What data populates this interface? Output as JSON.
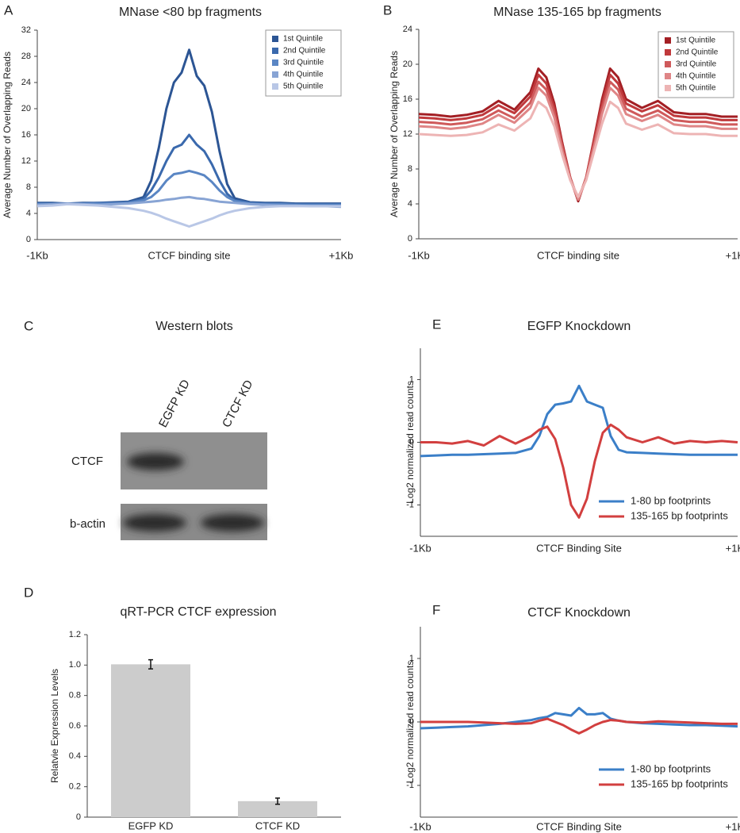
{
  "chart_data": [
    {
      "type": "line",
      "panel": "A",
      "title": "MNase <80 bp fragments",
      "ylabel": "Average Number of Overlapping Reads",
      "x": [
        -1000,
        -900,
        -800,
        -700,
        -600,
        -500,
        -400,
        -300,
        -250,
        -200,
        -150,
        -100,
        -50,
        0,
        50,
        100,
        150,
        200,
        250,
        300,
        400,
        500,
        600,
        700,
        800,
        900,
        1000
      ],
      "xlim": [
        -1000,
        1000
      ],
      "xticks": [
        {
          "value": -1000,
          "label": "-1Kb"
        },
        {
          "value": 0,
          "label": "CTCF binding site"
        },
        {
          "value": 1000,
          "label": "+1Kb"
        }
      ],
      "ylim": [
        0,
        32
      ],
      "yticks": [
        0,
        4,
        8,
        12,
        16,
        20,
        24,
        28,
        32
      ],
      "legend": "upper right",
      "series": [
        {
          "name": "1st Quintile",
          "color": "#2c5594",
          "values": [
            5.6,
            5.6,
            5.5,
            5.6,
            5.6,
            5.7,
            5.8,
            6.5,
            9,
            14,
            20,
            24,
            25.5,
            29,
            25,
            23.5,
            19.5,
            13.5,
            8.5,
            6.3,
            5.7,
            5.6,
            5.6,
            5.5,
            5.5,
            5.5,
            5.5
          ]
        },
        {
          "name": "2nd Quintile",
          "color": "#3a69ad",
          "values": [
            5.5,
            5.5,
            5.5,
            5.5,
            5.6,
            5.6,
            5.7,
            6.2,
            7.5,
            9.5,
            12,
            14,
            14.5,
            16,
            14.5,
            13.5,
            11.5,
            9,
            7,
            6,
            5.6,
            5.5,
            5.5,
            5.4,
            5.4,
            5.4,
            5.4
          ]
        },
        {
          "name": "3rd Quintile",
          "color": "#5a86c4",
          "values": [
            5.4,
            5.4,
            5.4,
            5.5,
            5.5,
            5.5,
            5.6,
            6,
            6.5,
            7.5,
            9,
            10,
            10.2,
            10.5,
            10.2,
            9.8,
            8.8,
            7.5,
            6.5,
            5.9,
            5.5,
            5.4,
            5.4,
            5.3,
            5.3,
            5.3,
            5.3
          ]
        },
        {
          "name": "4th Quintile",
          "color": "#88a4d4",
          "values": [
            5.3,
            5.4,
            5.5,
            5.4,
            5.3,
            5.4,
            5.5,
            5.7,
            5.8,
            5.9,
            6.1,
            6.2,
            6.4,
            6.5,
            6.3,
            6.2,
            6,
            5.8,
            5.7,
            5.6,
            5.4,
            5.3,
            5.2,
            5.2,
            5.1,
            5.1,
            5
          ]
        },
        {
          "name": "5th Quintile",
          "color": "#b9c7e6",
          "values": [
            5.1,
            5.2,
            5.4,
            5.3,
            5.2,
            5,
            4.8,
            4.4,
            4.1,
            3.7,
            3.2,
            2.8,
            2.4,
            2,
            2.4,
            2.8,
            3.2,
            3.7,
            4.1,
            4.4,
            4.8,
            5,
            5.1,
            5.1,
            5.1,
            5.1,
            5.1
          ]
        }
      ]
    },
    {
      "type": "line",
      "panel": "B",
      "title": "MNase 135-165 bp fragments",
      "ylabel": "Average Number of Overlapping Reads",
      "x": [
        -1000,
        -900,
        -800,
        -700,
        -600,
        -500,
        -400,
        -300,
        -250,
        -200,
        -150,
        -100,
        -50,
        0,
        50,
        100,
        150,
        200,
        250,
        300,
        400,
        500,
        600,
        700,
        800,
        900,
        1000
      ],
      "xlim": [
        -1000,
        1000
      ],
      "xticks": [
        {
          "value": -1000,
          "label": "-1Kb"
        },
        {
          "value": 0,
          "label": "CTCF binding site"
        },
        {
          "value": 1000,
          "label": "+1Kb"
        }
      ],
      "ylim": [
        0,
        24
      ],
      "yticks": [
        0,
        4,
        8,
        12,
        16,
        20,
        24
      ],
      "legend": "upper right",
      "series": [
        {
          "name": "1st Quintile",
          "color": "#a31f24",
          "values": [
            14.3,
            14.2,
            14,
            14.2,
            14.6,
            15.8,
            14.8,
            16.8,
            19.5,
            18.5,
            15.5,
            11,
            7,
            4.3,
            7,
            11.5,
            16,
            19.5,
            18.5,
            16,
            15,
            15.8,
            14.5,
            14.3,
            14.3,
            14,
            14
          ]
        },
        {
          "name": "2nd Quintile",
          "color": "#c0393c",
          "values": [
            13.9,
            13.8,
            13.6,
            13.8,
            14.2,
            15.3,
            14.4,
            16.3,
            18.8,
            17.8,
            15,
            10.8,
            7,
            4.5,
            7,
            11.3,
            15.5,
            18.8,
            17.8,
            15.5,
            14.6,
            15.3,
            14.1,
            13.9,
            13.9,
            13.6,
            13.6
          ]
        },
        {
          "name": "3rd Quintile",
          "color": "#cf5a5b",
          "values": [
            13.4,
            13.3,
            13.1,
            13.3,
            13.7,
            14.7,
            13.8,
            15.6,
            18,
            17.1,
            14.5,
            10.5,
            6.9,
            4.5,
            6.9,
            10.9,
            14.9,
            18,
            17.1,
            14.9,
            14,
            14.7,
            13.6,
            13.4,
            13.4,
            13.1,
            13.1
          ]
        },
        {
          "name": "4th Quintile",
          "color": "#df8586",
          "values": [
            12.9,
            12.8,
            12.6,
            12.8,
            13.2,
            14.2,
            13.3,
            15,
            17.3,
            16.4,
            13.9,
            10.1,
            6.8,
            4.5,
            6.8,
            10.5,
            14.3,
            17.3,
            16.4,
            14.3,
            13.5,
            14.2,
            13.1,
            12.9,
            12.9,
            12.6,
            12.6
          ]
        },
        {
          "name": "5th Quintile",
          "color": "#edb4b4",
          "values": [
            12,
            11.9,
            11.8,
            11.9,
            12.2,
            13.1,
            12.4,
            13.8,
            15.7,
            15,
            12.9,
            9.6,
            6.7,
            4.8,
            6.7,
            10,
            13.2,
            15.7,
            15,
            13.2,
            12.5,
            13.1,
            12.1,
            12,
            12,
            11.8,
            11.8
          ]
        }
      ]
    },
    {
      "type": "bar",
      "panel": "D",
      "title": "qRT-PCR CTCF expression",
      "ylabel": "Relatvie Expression Levels",
      "categories": [
        "EGFP KD",
        "CTCF KD"
      ],
      "values": [
        1.005,
        0.105
      ],
      "errors": [
        0.03,
        0.02
      ],
      "color": "#cccccc",
      "ylim": [
        0,
        1.2
      ],
      "yticks": [
        0,
        0.2,
        0.4,
        0.6,
        0.8,
        {
          "value": 1,
          "label": "1.0"
        },
        1.2
      ]
    },
    {
      "type": "line",
      "panel": "E",
      "title": "EGFP Knockdown",
      "ylabel": "Log2 normalized read counts",
      "x": [
        -1000,
        -900,
        -800,
        -700,
        -600,
        -500,
        -400,
        -300,
        -250,
        -200,
        -150,
        -100,
        -50,
        0,
        50,
        100,
        150,
        200,
        250,
        300,
        400,
        500,
        600,
        700,
        800,
        900,
        1000
      ],
      "xlim": [
        -1000,
        1000
      ],
      "xticks": [
        {
          "value": -1000,
          "label": "-1Kb"
        },
        {
          "value": 0,
          "label": "CTCF Binding Site"
        },
        {
          "value": 1000,
          "label": "+1Kb"
        }
      ],
      "ylim": [
        -1.5,
        1.5
      ],
      "yticks": [
        -1,
        0,
        1
      ],
      "legend": "lower right",
      "series": [
        {
          "name": "1-80 bp footprints",
          "color": "#3b7fc8",
          "values": [
            -0.22,
            -0.21,
            -0.2,
            -0.2,
            -0.19,
            -0.18,
            -0.17,
            -0.1,
            0.1,
            0.45,
            0.6,
            0.62,
            0.65,
            0.9,
            0.65,
            0.6,
            0.55,
            0.1,
            -0.12,
            -0.16,
            -0.17,
            -0.18,
            -0.19,
            -0.2,
            -0.2,
            -0.2,
            -0.2
          ]
        },
        {
          "name": "135-165 bp footprints",
          "color": "#d23f3f",
          "values": [
            0,
            0,
            -0.02,
            0.02,
            -0.05,
            0.1,
            -0.02,
            0.1,
            0.2,
            0.25,
            0.05,
            -0.4,
            -1,
            -1.2,
            -0.9,
            -0.3,
            0.15,
            0.28,
            0.2,
            0.08,
            0,
            0.08,
            -0.02,
            0.02,
            0,
            0.02,
            0
          ]
        }
      ]
    },
    {
      "type": "line",
      "panel": "F",
      "title": "CTCF Knockdown",
      "ylabel": "Log2 normalized read counts",
      "x": [
        -1000,
        -900,
        -800,
        -700,
        -600,
        -500,
        -400,
        -300,
        -250,
        -200,
        -150,
        -100,
        -50,
        0,
        50,
        100,
        150,
        200,
        250,
        300,
        400,
        500,
        600,
        700,
        800,
        900,
        1000
      ],
      "xlim": [
        -1000,
        1000
      ],
      "xticks": [
        {
          "value": -1000,
          "label": "-1Kb"
        },
        {
          "value": 0,
          "label": "CTCF Binding Site"
        },
        {
          "value": 1000,
          "label": "+1Kb"
        }
      ],
      "ylim": [
        -1.5,
        1.5
      ],
      "yticks": [
        -1,
        0,
        1
      ],
      "legend": "lower right",
      "series": [
        {
          "name": "1-80 bp footprints",
          "color": "#3b7fc8",
          "values": [
            -0.1,
            -0.09,
            -0.08,
            -0.07,
            -0.05,
            -0.03,
            0,
            0.03,
            0.06,
            0.08,
            0.14,
            0.12,
            0.1,
            0.22,
            0.12,
            0.12,
            0.14,
            0.05,
            0.02,
            0,
            -0.02,
            -0.03,
            -0.04,
            -0.05,
            -0.05,
            -0.06,
            -0.07
          ]
        },
        {
          "name": "135-165 bp footprints",
          "color": "#d23f3f",
          "values": [
            0,
            0,
            0,
            0,
            -0.01,
            -0.02,
            -0.03,
            -0.02,
            0.02,
            0.05,
            0,
            -0.05,
            -0.12,
            -0.18,
            -0.12,
            -0.05,
            0,
            0.03,
            0.02,
            0,
            -0.01,
            0.01,
            0,
            -0.01,
            -0.02,
            -0.03,
            -0.03
          ]
        }
      ]
    }
  ],
  "blot": {
    "panel": "C",
    "title": "Western blots",
    "lanes": [
      "EGFP KD",
      "CTCF KD"
    ],
    "rows": [
      "CTCF",
      "b-actin"
    ]
  }
}
